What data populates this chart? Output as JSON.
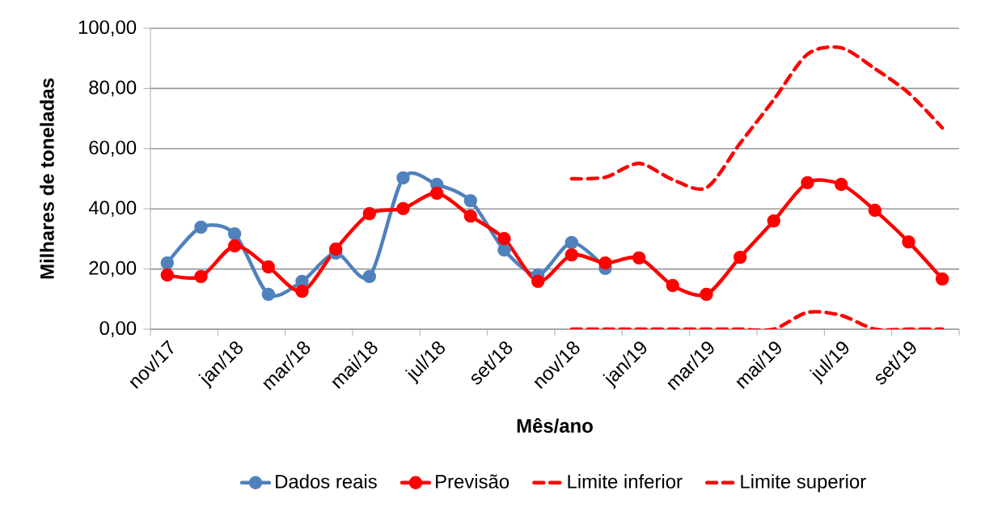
{
  "chart_data": {
    "type": "line",
    "xlabel": "Mês/ano",
    "ylabel": "Milhares de toneladas",
    "categories": [
      "nov/17",
      null,
      "jan/18",
      null,
      "mar/18",
      null,
      "mai/18",
      null,
      "jul/18",
      null,
      "set/18",
      null,
      "nov/18",
      null,
      "jan/19",
      null,
      "mar/19",
      null,
      "mai/19",
      null,
      "jul/19",
      null,
      "set/19",
      null
    ],
    "ylim": [
      0,
      100
    ],
    "yticks": [
      {
        "value": 0,
        "label": "0,00"
      },
      {
        "value": 20,
        "label": "20,00"
      },
      {
        "value": 40,
        "label": "40,00"
      },
      {
        "value": 60,
        "label": "60,00"
      },
      {
        "value": 80,
        "label": "80,00"
      },
      {
        "value": 100,
        "label": "100,00"
      }
    ],
    "grid": "y",
    "legend": "bottom",
    "series": [
      {
        "name": "Dados reais",
        "color": "#4f81bd",
        "marker": "circle",
        "line_style": "solid",
        "values": [
          22.0,
          33.9,
          31.7,
          11.6,
          15.9,
          25.3,
          17.5,
          50.3,
          48.1,
          42.7,
          26.3,
          18.0,
          28.8,
          20.2,
          null,
          null,
          null,
          null,
          null,
          null,
          null,
          null,
          null,
          null
        ]
      },
      {
        "name": "Previsão",
        "color": "#ff0000",
        "marker": "circle",
        "line_style": "solid",
        "values": [
          18.0,
          17.5,
          27.7,
          20.7,
          12.6,
          26.6,
          38.4,
          40.1,
          45.2,
          37.6,
          30.1,
          15.9,
          24.7,
          22.0,
          23.7,
          14.5,
          11.6,
          23.9,
          36.0,
          48.7,
          48.1,
          39.5,
          29.0,
          16.7
        ]
      },
      {
        "name": "Limite inferior",
        "color": "#ff0000",
        "marker": "none",
        "line_style": "dashed",
        "values": [
          null,
          null,
          null,
          null,
          null,
          null,
          null,
          null,
          null,
          null,
          null,
          null,
          0,
          0,
          0,
          0,
          0,
          0,
          0,
          5.6,
          4.6,
          0,
          0,
          0
        ]
      },
      {
        "name": "Limite superior",
        "color": "#ff0000",
        "marker": "none",
        "line_style": "dashed",
        "values": [
          null,
          null,
          null,
          null,
          null,
          null,
          null,
          null,
          null,
          null,
          null,
          null,
          50.0,
          50.5,
          55.1,
          49.7,
          47.0,
          61.8,
          76.3,
          91.4,
          93.5,
          86.6,
          78.5,
          66.9
        ]
      }
    ]
  }
}
